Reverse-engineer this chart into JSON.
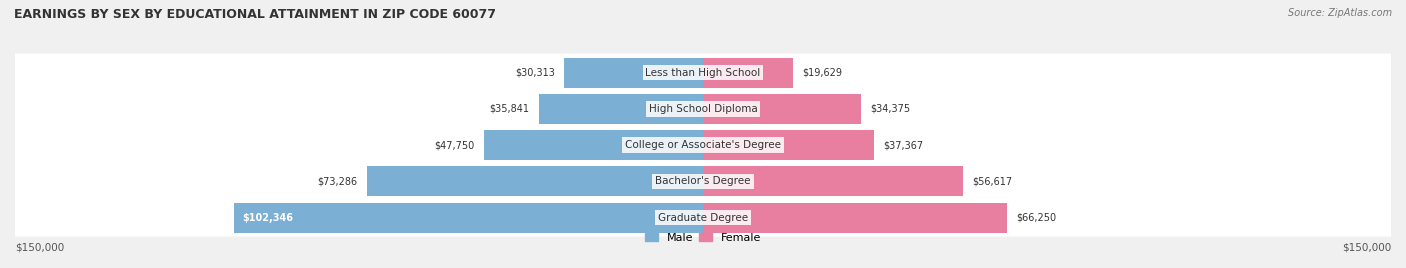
{
  "title": "EARNINGS BY SEX BY EDUCATIONAL ATTAINMENT IN ZIP CODE 60077",
  "source": "Source: ZipAtlas.com",
  "categories": [
    "Less than High School",
    "High School Diploma",
    "College or Associate's Degree",
    "Bachelor's Degree",
    "Graduate Degree"
  ],
  "male_values": [
    30313,
    35841,
    47750,
    73286,
    102346
  ],
  "female_values": [
    19629,
    34375,
    37367,
    56617,
    66250
  ],
  "male_color": "#7bafd4",
  "female_color": "#e87fa0",
  "background_color": "#f0f0f0",
  "bar_background": "#e0e0e0",
  "max_value": 150000,
  "bar_height": 0.55
}
